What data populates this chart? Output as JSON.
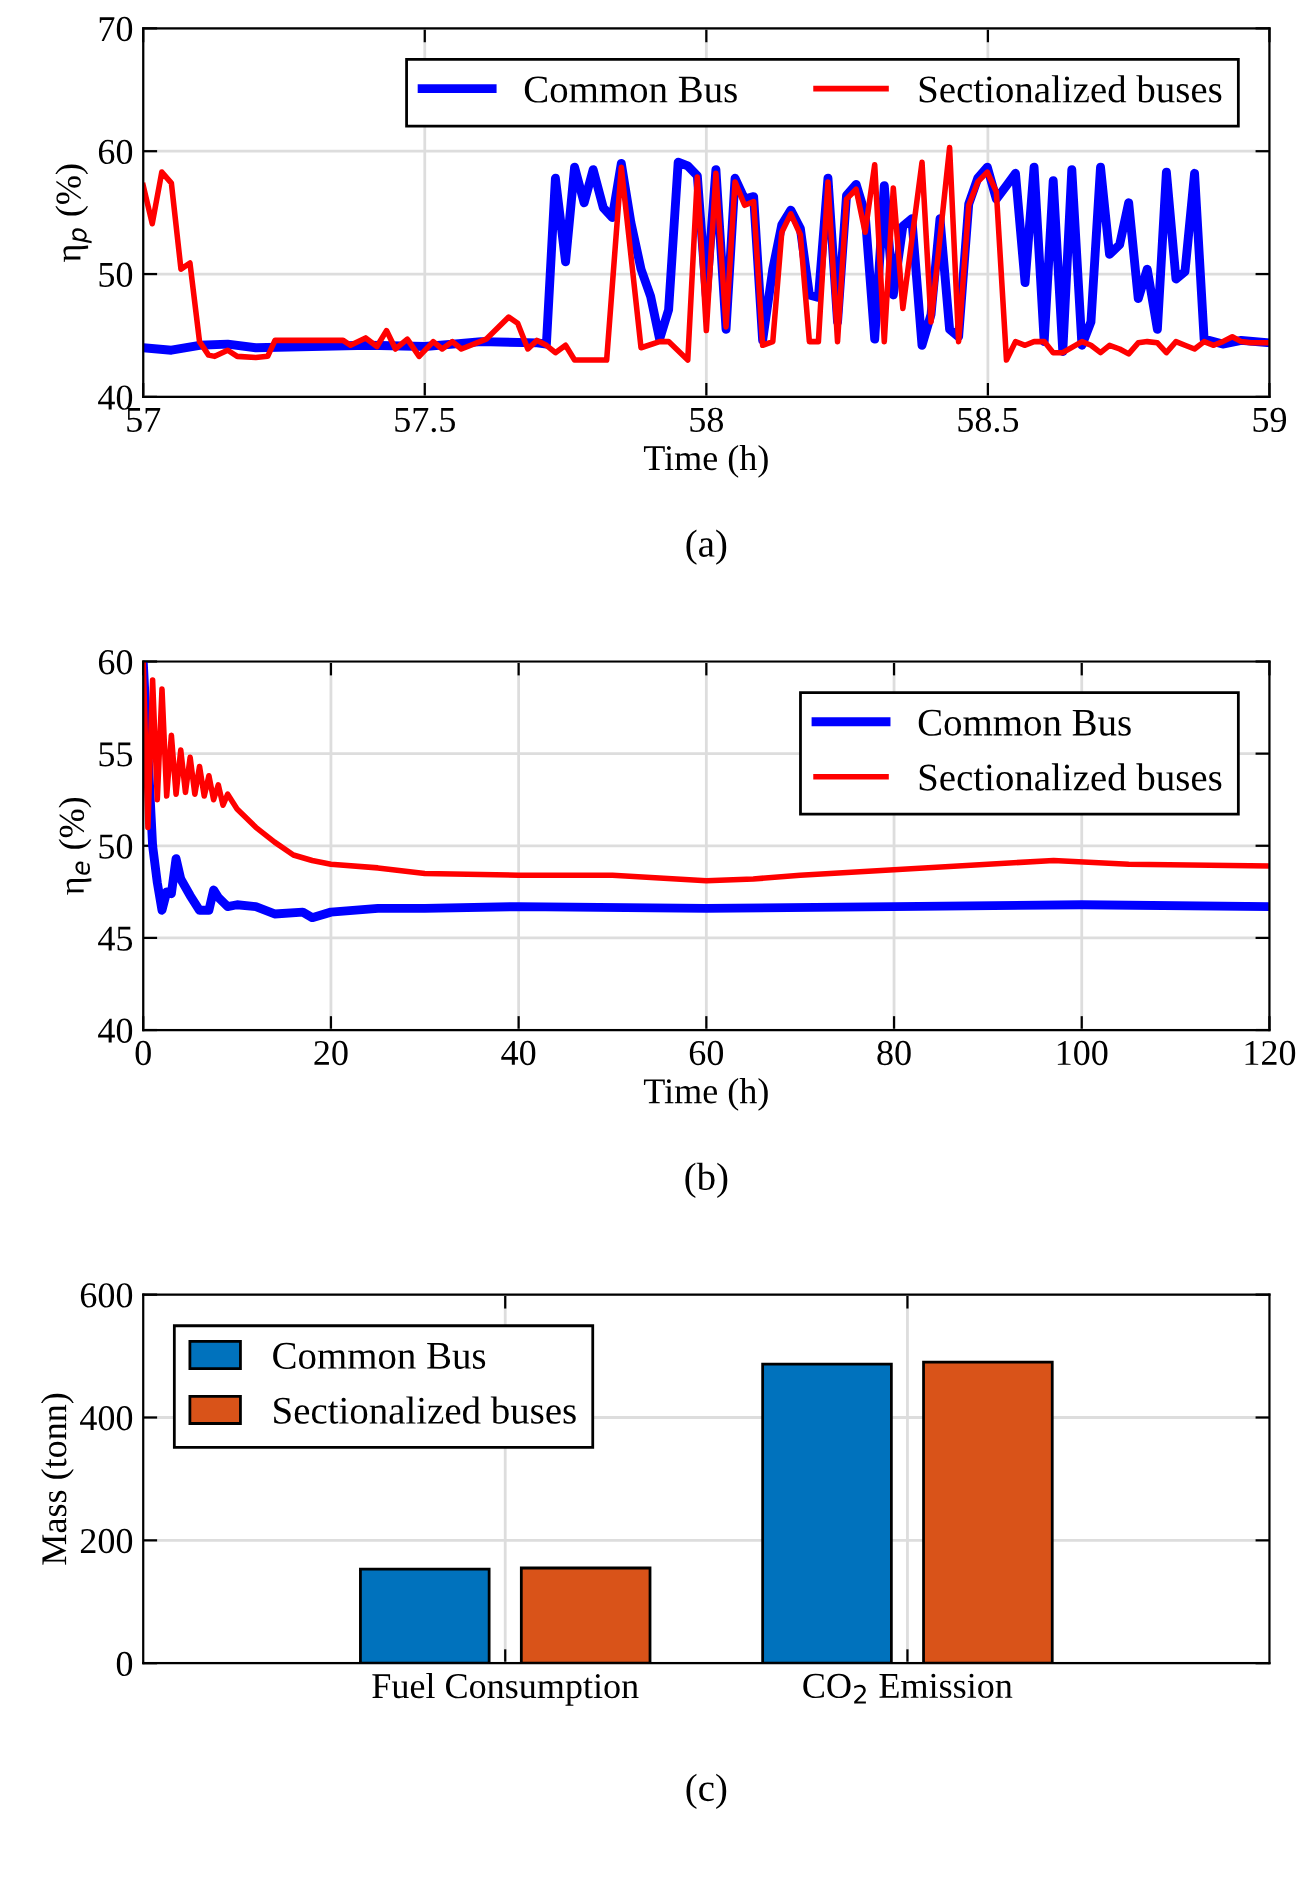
{
  "chart_data": [
    {
      "type": "line",
      "xlabel": "Time (h)",
      "ylabel": "η$_{p}$ (%)",
      "annotations": [
        "(a)"
      ],
      "xlim": [
        57,
        59
      ],
      "ylim": [
        40,
        70
      ],
      "xticks": [
        57,
        57.5,
        58,
        58.5,
        59
      ],
      "yticks": [
        40,
        50,
        60,
        70
      ],
      "grid": true,
      "legend": "top right",
      "series": [
        {
          "name": "Common Bus",
          "color": "#0000ff",
          "x": [
            57,
            57.05,
            57.1,
            57.15,
            57.2,
            57.3,
            57.4,
            57.5,
            57.55,
            57.6,
            57.7,
            57.716,
            57.732,
            57.75,
            57.766,
            57.783,
            57.799,
            57.817,
            57.833,
            57.849,
            57.866,
            57.884,
            57.901,
            57.917,
            57.933,
            57.95,
            57.967,
            57.984,
            58.0,
            58.017,
            58.035,
            58.051,
            58.068,
            58.084,
            58.1,
            58.118,
            58.134,
            58.15,
            58.167,
            58.183,
            58.199,
            58.216,
            58.233,
            58.249,
            58.266,
            58.282,
            58.299,
            58.316,
            58.332,
            58.349,
            58.365,
            58.383,
            58.399,
            58.415,
            58.432,
            58.448,
            58.466,
            58.482,
            58.499,
            58.515,
            58.533,
            58.549,
            58.566,
            58.582,
            58.6,
            58.616,
            58.633,
            58.649,
            58.667,
            58.683,
            58.7,
            58.716,
            58.734,
            58.75,
            58.767,
            58.783,
            58.801,
            58.817,
            58.834,
            58.85,
            58.867,
            58.884,
            58.917,
            58.95,
            59.0
          ],
          "values": [
            44,
            43.8,
            44.2,
            44.3,
            44,
            44.1,
            44.2,
            44.1,
            44.3,
            44.5,
            44.4,
            44.3,
            57.8,
            51.0,
            58.7,
            55.8,
            58.5,
            55.4,
            54.6,
            59.0,
            54.2,
            50.4,
            48.2,
            44.7,
            47.1,
            59.1,
            58.8,
            58.0,
            48.2,
            58.5,
            45.5,
            57.8,
            56.1,
            56.3,
            44.6,
            50.4,
            54.0,
            55.2,
            53.7,
            48.3,
            48.1,
            57.8,
            46.1,
            56.4,
            57.3,
            54.9,
            44.7,
            57.2,
            48.3,
            53.9,
            54.5,
            44.2,
            46.7,
            54.5,
            45.5,
            44.9,
            55.7,
            57.8,
            58.7,
            56.1,
            57.2,
            58.2,
            49.3,
            58.7,
            44.5,
            57.6,
            43.7,
            58.5,
            44.2,
            46.1,
            58.7,
            51.6,
            52.4,
            55.8,
            48.0,
            50.4,
            45.5,
            58.3,
            49.6,
            50.2,
            58.2,
            44.7,
            44.3,
            44.6,
            44.4
          ]
        },
        {
          "name": "Sectionalized buses",
          "color": "#ff0000",
          "x": [
            57,
            57.016,
            57.033,
            57.05,
            57.067,
            57.083,
            57.1,
            57.116,
            57.127,
            57.15,
            57.167,
            57.2,
            57.221,
            57.234,
            57.288,
            57.355,
            57.368,
            57.395,
            57.415,
            57.432,
            57.448,
            57.469,
            57.49,
            57.515,
            57.531,
            57.549,
            57.565,
            57.609,
            57.649,
            57.665,
            57.683,
            57.699,
            57.716,
            57.732,
            57.75,
            57.766,
            57.823,
            57.849,
            57.884,
            57.917,
            57.933,
            57.967,
            57.984,
            58.0,
            58.017,
            58.035,
            58.051,
            58.068,
            58.084,
            58.1,
            58.118,
            58.134,
            58.15,
            58.167,
            58.183,
            58.199,
            58.216,
            58.233,
            58.249,
            58.266,
            58.282,
            58.299,
            58.316,
            58.332,
            58.349,
            58.383,
            58.399,
            58.432,
            58.448,
            58.466,
            58.482,
            58.499,
            58.515,
            58.533,
            58.549,
            58.566,
            58.582,
            58.6,
            58.616,
            58.633,
            58.667,
            58.683,
            58.7,
            58.716,
            58.734,
            58.75,
            58.767,
            58.783,
            58.801,
            58.817,
            58.834,
            58.85,
            58.867,
            58.884,
            58.901,
            58.917,
            58.934,
            58.95,
            58.967,
            59.0
          ],
          "values": [
            57.2,
            54.1,
            58.3,
            57.4,
            50.4,
            50.9,
            44.5,
            43.4,
            43.3,
            43.8,
            43.3,
            43.2,
            43.3,
            44.6,
            44.6,
            44.6,
            44.2,
            44.8,
            44.1,
            45.4,
            43.9,
            44.7,
            43.3,
            44.5,
            43.9,
            44.5,
            43.9,
            44.7,
            46.5,
            46.0,
            43.9,
            44.6,
            44.2,
            43.6,
            44.2,
            43.0,
            43.0,
            58.7,
            44.0,
            44.5,
            44.5,
            43.0,
            57.9,
            45.4,
            58.2,
            45.7,
            57.5,
            55.6,
            55.9,
            44.2,
            44.5,
            53.4,
            54.9,
            53.2,
            44.5,
            44.5,
            57.5,
            44.5,
            56.1,
            56.9,
            53.4,
            58.9,
            44.5,
            57.0,
            47.2,
            59.1,
            46.1,
            60.3,
            44.5,
            55.6,
            57.5,
            58.3,
            56.7,
            43.0,
            44.5,
            44.2,
            44.5,
            44.5,
            43.6,
            43.6,
            44.5,
            44.2,
            43.6,
            44.2,
            43.9,
            43.5,
            44.4,
            44.5,
            44.4,
            43.6,
            44.5,
            44.2,
            43.9,
            44.5,
            44.2,
            44.5,
            44.9,
            44.5,
            44.4,
            44.4
          ]
        }
      ]
    },
    {
      "type": "line",
      "xlabel": "Time (h)",
      "ylabel": "η$_{e}$ (%)",
      "annotations": [
        "(b)"
      ],
      "xlim": [
        0,
        120
      ],
      "ylim": [
        40,
        60
      ],
      "xticks": [
        0,
        20,
        40,
        60,
        80,
        100,
        120
      ],
      "yticks": [
        40,
        45,
        50,
        55,
        60
      ],
      "grid": true,
      "legend": "top right",
      "series": [
        {
          "name": "Common Bus",
          "color": "#0000ff",
          "x": [
            0,
            0.5,
            1,
            1.5,
            2,
            2.5,
            3,
            3.5,
            4,
            5,
            6,
            7,
            7.5,
            8,
            9,
            10,
            12,
            14,
            17,
            18,
            20,
            25,
            30,
            40,
            60,
            80,
            100,
            120
          ],
          "values": [
            60,
            55,
            50,
            48,
            46.5,
            47.5,
            47.4,
            49.3,
            48.2,
            47.3,
            46.5,
            46.5,
            47.6,
            47.2,
            46.7,
            46.8,
            46.7,
            46.3,
            46.4,
            46.1,
            46.4,
            46.6,
            46.6,
            46.7,
            46.6,
            46.7,
            46.8,
            46.7
          ]
        },
        {
          "name": "Sectionalized buses",
          "color": "#ff0000",
          "x": [
            0,
            0.5,
            1,
            1.5,
            2,
            2.5,
            3,
            3.5,
            4,
            4.5,
            5,
            5.5,
            6,
            6.5,
            7,
            7.5,
            8,
            8.5,
            9,
            10,
            12,
            14,
            16,
            18,
            20,
            25,
            30,
            40,
            50,
            60,
            65,
            70,
            80,
            90,
            97,
            105,
            120
          ],
          "values": [
            60,
            51,
            59,
            52.5,
            58.5,
            52.7,
            56,
            52.8,
            55.2,
            52.9,
            54.8,
            52.8,
            54.3,
            52.7,
            53.8,
            52.5,
            53.3,
            52.2,
            52.8,
            52,
            51,
            50.2,
            49.5,
            49.2,
            49,
            48.8,
            48.5,
            48.4,
            48.4,
            48.1,
            48.2,
            48.4,
            48.7,
            49.0,
            49.2,
            49.0,
            48.9
          ]
        }
      ]
    },
    {
      "type": "bar",
      "ylabel": "Mass (tonn)",
      "annotations": [
        "(c)"
      ],
      "categories": [
        "Fuel Consumption",
        "CO$_{2}$ Emission"
      ],
      "ylim": [
        0,
        600
      ],
      "yticks": [
        0,
        200,
        400,
        600
      ],
      "grid": true,
      "legend": "top left",
      "series": [
        {
          "name": "Common Bus",
          "color": "#0072bd",
          "values": [
            153,
            487
          ]
        },
        {
          "name": "Sectionalized buses",
          "color": "#d95319",
          "values": [
            155,
            490
          ]
        }
      ]
    }
  ]
}
